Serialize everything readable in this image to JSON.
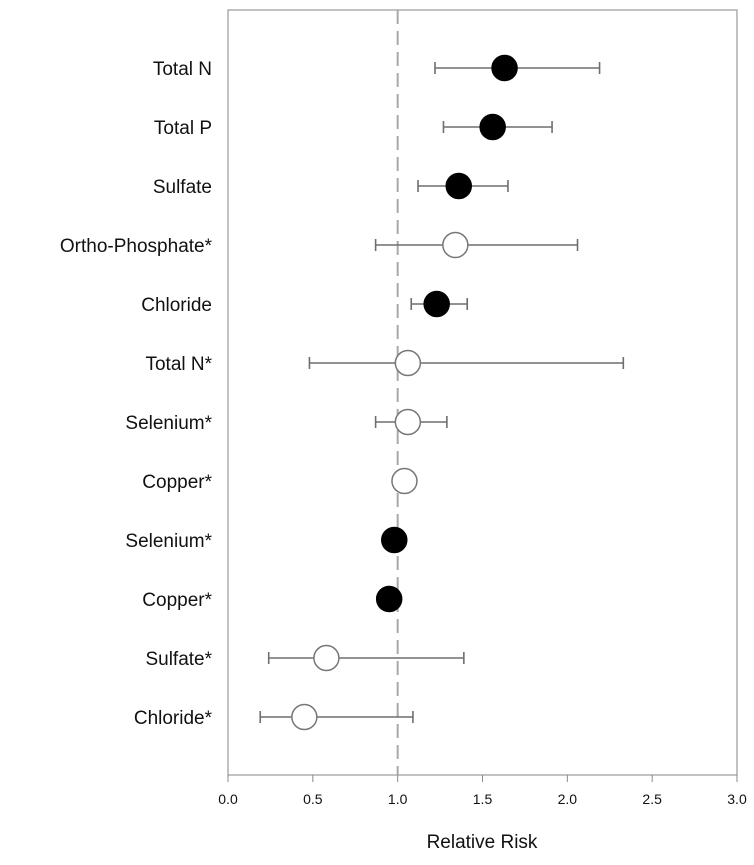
{
  "chart_data": {
    "type": "forest",
    "xlabel": "Relative Risk",
    "xlim": [
      0.0,
      3.0
    ],
    "xticks": [
      "0.0",
      "0.5",
      "1.0",
      "1.5",
      "2.0",
      "2.5",
      "3.0"
    ],
    "reference_line": 1.0,
    "grid": false,
    "marker_colors": {
      "filled": "#000000",
      "open": "#ffffff"
    },
    "rows": [
      {
        "label": "Total N",
        "value": 1.63,
        "lower": 1.22,
        "upper": 2.19,
        "filled": true
      },
      {
        "label": "Total P",
        "value": 1.56,
        "lower": 1.27,
        "upper": 1.91,
        "filled": true
      },
      {
        "label": "Sulfate",
        "value": 1.36,
        "lower": 1.12,
        "upper": 1.65,
        "filled": true
      },
      {
        "label": "Ortho-Phosphate*",
        "value": 1.34,
        "lower": 0.87,
        "upper": 2.06,
        "filled": false
      },
      {
        "label": "Chloride",
        "value": 1.23,
        "lower": 1.08,
        "upper": 1.41,
        "filled": true
      },
      {
        "label": "Total N*",
        "value": 1.06,
        "lower": 0.48,
        "upper": 2.33,
        "filled": false
      },
      {
        "label": "Selenium*",
        "value": 1.06,
        "lower": 0.87,
        "upper": 1.29,
        "filled": false
      },
      {
        "label": "Copper*",
        "value": 1.04,
        "lower": null,
        "upper": null,
        "filled": false
      },
      {
        "label": "Selenium*",
        "value": 0.98,
        "lower": null,
        "upper": null,
        "filled": true
      },
      {
        "label": "Copper*",
        "value": 0.95,
        "lower": null,
        "upper": null,
        "filled": true
      },
      {
        "label": "Sulfate*",
        "value": 0.58,
        "lower": 0.24,
        "upper": 1.39,
        "filled": false
      },
      {
        "label": "Chloride*",
        "value": 0.45,
        "lower": 0.19,
        "upper": 1.09,
        "filled": false
      }
    ]
  }
}
